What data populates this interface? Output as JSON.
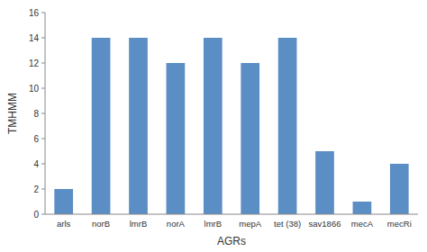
{
  "chart_data": {
    "type": "bar",
    "categories": [
      "arls",
      "norB",
      "lmrB",
      "norA",
      "lmrB",
      "mepA",
      "tet (38)",
      "sav1866",
      "mecA",
      "mecRi"
    ],
    "values": [
      2,
      14,
      14,
      12,
      14,
      12,
      14,
      5,
      1,
      4
    ],
    "color": "#5b8ec4",
    "xlabel": "AGRs",
    "ylabel": "TMHMM",
    "ylim": [
      0,
      16
    ],
    "yticks": [
      0,
      2,
      4,
      6,
      8,
      10,
      12,
      14,
      16
    ],
    "grid": false
  }
}
